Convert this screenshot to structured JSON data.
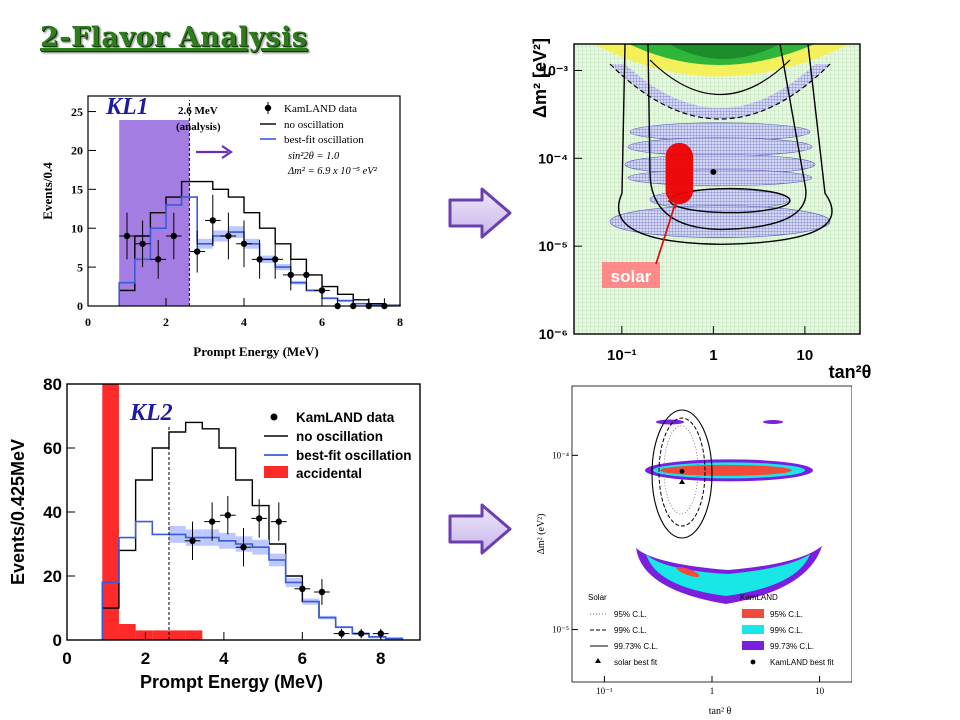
{
  "slide": {
    "title": "2-Flavor Analysis"
  },
  "colors": {
    "title": "#2e7d1a",
    "arrow_fill": "#d6c8ee",
    "arrow_stroke": "#6b3fb0",
    "kl1_band": "#9a6fe0",
    "accidental": "#ff2a2a",
    "bestfit_band": "#bcc8ff",
    "solar_region": "#ee0000",
    "solar_label_bg": "#ff8a8a"
  },
  "arrows": [
    {
      "icon": "right-block-arrow-icon"
    },
    {
      "icon": "right-block-arrow-icon"
    }
  ],
  "chart_data": [
    {
      "id": "kl1",
      "type": "histogram",
      "panel_label": "KL1",
      "xlabel": "Prompt Energy (MeV)",
      "ylabel": "Events/0.4",
      "xlim": [
        0,
        8
      ],
      "ylim": [
        0,
        27
      ],
      "xticks": [
        "0",
        "2",
        "4",
        "6",
        "8"
      ],
      "yticks": [
        "0",
        "5",
        "10",
        "15",
        "20",
        "25"
      ],
      "threshold_label": [
        "2.6 MeV",
        "(analysis)"
      ],
      "threshold_x": 2.6,
      "shaded_region": [
        0.8,
        2.6
      ],
      "legend": [
        "KamLAND data",
        "no oscillation",
        "best-fit oscillation"
      ],
      "annotations": [
        "sin²2θ = 1.0",
        "Δm² = 6.9 x 10⁻⁵ eV²"
      ],
      "bin_edges": [
        0.8,
        1.2,
        1.6,
        2.0,
        2.4,
        2.8,
        3.2,
        3.6,
        4.0,
        4.4,
        4.8,
        5.2,
        5.6,
        6.0,
        6.4,
        6.8,
        7.2,
        7.6,
        8.0
      ],
      "series": [
        {
          "name": "no oscillation",
          "style": "step",
          "values": [
            2,
            9,
            12,
            14,
            16,
            16,
            15,
            14,
            12,
            10,
            8,
            6,
            4,
            2.5,
            1.5,
            0.8,
            0.3,
            0.1
          ]
        },
        {
          "name": "best-fit oscillation",
          "style": "step",
          "values": [
            3,
            6,
            10,
            13,
            14,
            8,
            9,
            9.5,
            8,
            6,
            5,
            3,
            2,
            1,
            0.7,
            0.3,
            0.1,
            0.05
          ]
        },
        {
          "name": "KamLAND data",
          "style": "points",
          "x": [
            1.0,
            1.4,
            1.8,
            2.2,
            2.8,
            3.2,
            3.6,
            4.0,
            4.4,
            4.8,
            5.2,
            5.6,
            6.0,
            6.4,
            6.8,
            7.2,
            7.6
          ],
          "y": [
            9,
            8,
            6,
            9,
            7,
            11,
            9,
            8,
            6,
            6,
            4,
            4,
            2,
            0,
            0,
            0,
            0
          ],
          "err": [
            3,
            3,
            2.5,
            3,
            2.7,
            3.3,
            3,
            3,
            2.5,
            2.5,
            2,
            2,
            1.5,
            1,
            1,
            1,
            1
          ]
        }
      ]
    },
    {
      "id": "kl1-contour",
      "type": "contour",
      "xlabel": "tan²θ",
      "ylabel": "Δm² [eV²]",
      "xscale": "log",
      "yscale": "log",
      "xlim": [
        0.03,
        40
      ],
      "ylim": [
        1e-06,
        0.002
      ],
      "xticks": [
        "10⁻¹",
        "1",
        "10"
      ],
      "yticks": [
        "10⁻⁶",
        "10⁻⁵",
        "10⁻⁴",
        "10⁻³"
      ],
      "best_fit": [
        1.0,
        7e-05
      ],
      "annotation": "solar"
    },
    {
      "id": "kl2",
      "type": "histogram",
      "panel_label": "KL2",
      "xlabel": "Prompt Energy (MeV)",
      "ylabel": "Events/0.425MeV",
      "xlim": [
        0,
        9
      ],
      "ylim": [
        0,
        80
      ],
      "xticks": [
        "0",
        "2",
        "4",
        "6",
        "8"
      ],
      "yticks": [
        "0",
        "20",
        "40",
        "60",
        "80"
      ],
      "threshold_x": 2.6,
      "legend": [
        "KamLAND data",
        "no oscillation",
        "best-fit oscillation",
        "accidental"
      ],
      "bin_edges": [
        0.9,
        1.325,
        1.75,
        2.175,
        2.6,
        3.025,
        3.45,
        3.875,
        4.3,
        4.725,
        5.15,
        5.575,
        6.0,
        6.425,
        6.85,
        7.275,
        7.7,
        8.125,
        8.55
      ],
      "series": [
        {
          "name": "no oscillation",
          "style": "step",
          "values": [
            10,
            28,
            50,
            60,
            65,
            68,
            66,
            60,
            50,
            42,
            30,
            20,
            12,
            7,
            4,
            2,
            1,
            0.5
          ]
        },
        {
          "name": "best-fit oscillation",
          "style": "step",
          "values": [
            18,
            32,
            37,
            33,
            33,
            32,
            32,
            31,
            30,
            29,
            25,
            18,
            12,
            7,
            4,
            2,
            1,
            0.5
          ]
        },
        {
          "name": "accidental",
          "style": "filled",
          "values": [
            80,
            5,
            3,
            3,
            3,
            3,
            0,
            0,
            0,
            0,
            0,
            0,
            0,
            0,
            0,
            0,
            0,
            0
          ]
        },
        {
          "name": "KamLAND data",
          "style": "points",
          "x": [
            3.2,
            3.7,
            4.1,
            4.5,
            4.9,
            5.4,
            6.0,
            6.5,
            7.0,
            7.5,
            8.0
          ],
          "y": [
            31,
            37,
            39,
            29,
            38,
            37,
            16,
            15,
            2,
            2,
            2
          ],
          "err": [
            6,
            6,
            6,
            6,
            6,
            6,
            4,
            4,
            1.5,
            1.5,
            1.5
          ]
        }
      ]
    },
    {
      "id": "kl2-contour",
      "type": "contour",
      "xlabel": "tan² θ",
      "ylabel": "Δm² (eV²)",
      "xscale": "log",
      "yscale": "log",
      "xlim": [
        0.05,
        20
      ],
      "ylim": [
        5e-06,
        0.00025
      ],
      "xticks": [
        "10⁻¹",
        "1",
        "10"
      ],
      "yticks": [
        "10⁻⁵",
        "10⁻⁴"
      ],
      "legend_solar_title": "Solar",
      "legend_kamland_title": "KamLAND",
      "legend_rows": [
        "95% C.L.",
        "99% C.L.",
        "99.73% C.L."
      ],
      "legend_solar_bestfit": "solar best fit",
      "legend_kamland_bestfit": "KamLAND best fit"
    }
  ]
}
